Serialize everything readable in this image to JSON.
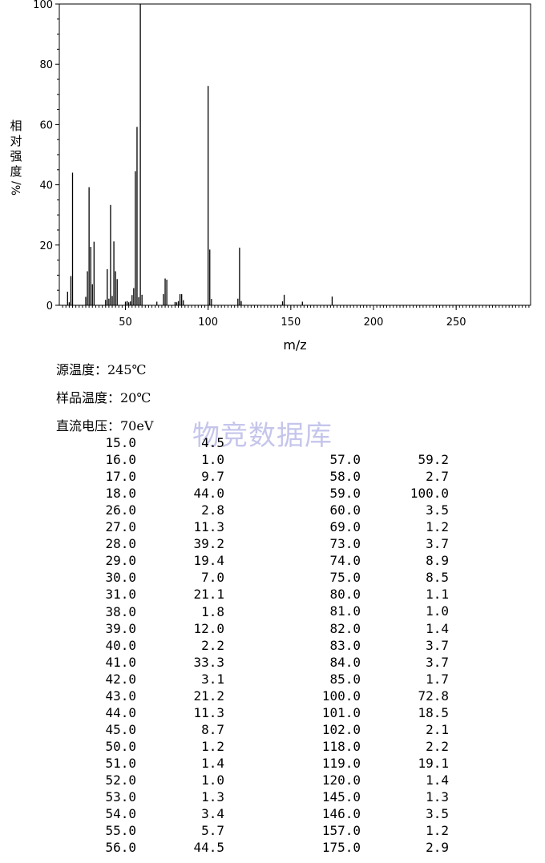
{
  "chart_data": {
    "type": "bar",
    "ylabel": "相对强度/%",
    "xlabel": "m/z",
    "xlim": [
      10,
      295
    ],
    "ylim": [
      0,
      100
    ],
    "x_ticks": [
      50,
      100,
      150,
      200,
      250
    ],
    "y_ticks": [
      0,
      20,
      40,
      60,
      80,
      100
    ],
    "peaks": [
      [
        15.0,
        4.5
      ],
      [
        16.0,
        1.0
      ],
      [
        17.0,
        9.7
      ],
      [
        18.0,
        44.0
      ],
      [
        26.0,
        2.8
      ],
      [
        27.0,
        11.3
      ],
      [
        28.0,
        39.2
      ],
      [
        29.0,
        19.4
      ],
      [
        30.0,
        7.0
      ],
      [
        31.0,
        21.1
      ],
      [
        38.0,
        1.8
      ],
      [
        39.0,
        12.0
      ],
      [
        40.0,
        2.2
      ],
      [
        41.0,
        33.3
      ],
      [
        42.0,
        3.1
      ],
      [
        43.0,
        21.2
      ],
      [
        44.0,
        11.3
      ],
      [
        45.0,
        8.7
      ],
      [
        50.0,
        1.2
      ],
      [
        51.0,
        1.4
      ],
      [
        52.0,
        1.0
      ],
      [
        53.0,
        1.3
      ],
      [
        54.0,
        3.4
      ],
      [
        55.0,
        5.7
      ],
      [
        56.0,
        44.5
      ],
      [
        57.0,
        59.2
      ],
      [
        58.0,
        2.7
      ],
      [
        59.0,
        100.0
      ],
      [
        60.0,
        3.5
      ],
      [
        69.0,
        1.2
      ],
      [
        73.0,
        3.7
      ],
      [
        74.0,
        8.9
      ],
      [
        75.0,
        8.5
      ],
      [
        80.0,
        1.1
      ],
      [
        81.0,
        1.0
      ],
      [
        82.0,
        1.4
      ],
      [
        83.0,
        3.7
      ],
      [
        84.0,
        3.7
      ],
      [
        85.0,
        1.7
      ],
      [
        100.0,
        72.8
      ],
      [
        101.0,
        18.5
      ],
      [
        102.0,
        2.1
      ],
      [
        118.0,
        2.2
      ],
      [
        119.0,
        19.1
      ],
      [
        120.0,
        1.4
      ],
      [
        145.0,
        1.3
      ],
      [
        146.0,
        3.5
      ],
      [
        157.0,
        1.2
      ],
      [
        175.0,
        2.9
      ]
    ]
  },
  "info": {
    "source_temp": "源温度：245℃",
    "sample_temp": "样品温度：20℃",
    "ionization": "直流电压：70eV"
  },
  "watermark": "物竞数据库",
  "table": {
    "left": [
      [
        "15.0",
        "4.5"
      ],
      [
        "16.0",
        "1.0"
      ],
      [
        "17.0",
        "9.7"
      ],
      [
        "18.0",
        "44.0"
      ],
      [
        "26.0",
        "2.8"
      ],
      [
        "27.0",
        "11.3"
      ],
      [
        "28.0",
        "39.2"
      ],
      [
        "29.0",
        "19.4"
      ],
      [
        "30.0",
        "7.0"
      ],
      [
        "31.0",
        "21.1"
      ],
      [
        "38.0",
        "1.8"
      ],
      [
        "39.0",
        "12.0"
      ],
      [
        "40.0",
        "2.2"
      ],
      [
        "41.0",
        "33.3"
      ],
      [
        "42.0",
        "3.1"
      ],
      [
        "43.0",
        "21.2"
      ],
      [
        "44.0",
        "11.3"
      ],
      [
        "45.0",
        "8.7"
      ],
      [
        "50.0",
        "1.2"
      ],
      [
        "51.0",
        "1.4"
      ],
      [
        "52.0",
        "1.0"
      ],
      [
        "53.0",
        "1.3"
      ],
      [
        "54.0",
        "3.4"
      ],
      [
        "55.0",
        "5.7"
      ],
      [
        "56.0",
        "44.5"
      ]
    ],
    "right": [
      [
        "57.0",
        "59.2"
      ],
      [
        "58.0",
        "2.7"
      ],
      [
        "59.0",
        "100.0"
      ],
      [
        "60.0",
        "3.5"
      ],
      [
        "69.0",
        "1.2"
      ],
      [
        "73.0",
        "3.7"
      ],
      [
        "74.0",
        "8.9"
      ],
      [
        "75.0",
        "8.5"
      ],
      [
        "80.0",
        "1.1"
      ],
      [
        "81.0",
        "1.0"
      ],
      [
        "82.0",
        "1.4"
      ],
      [
        "83.0",
        "3.7"
      ],
      [
        "84.0",
        "3.7"
      ],
      [
        "85.0",
        "1.7"
      ],
      [
        "100.0",
        "72.8"
      ],
      [
        "101.0",
        "18.5"
      ],
      [
        "102.0",
        "2.1"
      ],
      [
        "118.0",
        "2.2"
      ],
      [
        "119.0",
        "19.1"
      ],
      [
        "120.0",
        "1.4"
      ],
      [
        "145.0",
        "1.3"
      ],
      [
        "146.0",
        "3.5"
      ],
      [
        "157.0",
        "1.2"
      ],
      [
        "175.0",
        "2.9"
      ]
    ]
  }
}
